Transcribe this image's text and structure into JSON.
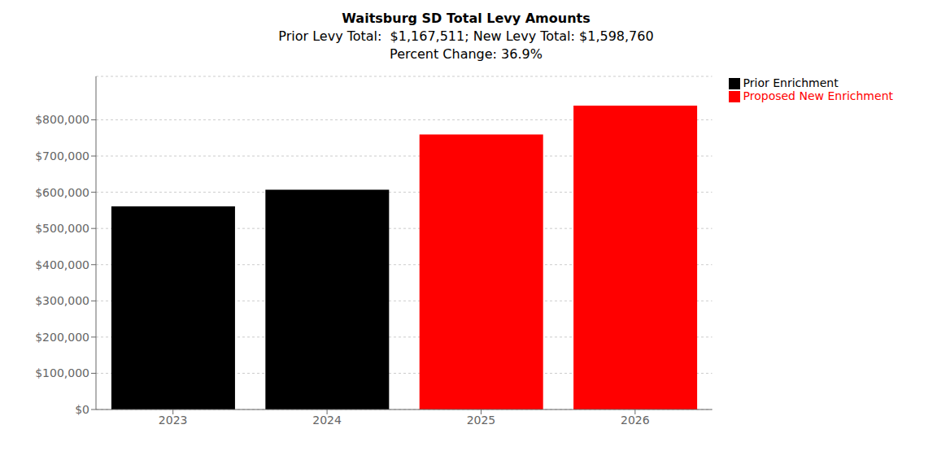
{
  "chart_data": {
    "type": "bar",
    "title": "Waitsburg SD Total Levy Amounts\nPrior Levy Total:  $1,167,511; New Levy Total: $1,598,760\nPercent Change: 36.9%",
    "categories": [
      "2023",
      "2024",
      "2025",
      "2026"
    ],
    "series": [
      {
        "name": "Prior Enrichment",
        "color": "#000000",
        "values": [
          560756,
          606755,
          null,
          null
        ]
      },
      {
        "name": "Proposed New Enrichment",
        "color": "#ff0000",
        "values": [
          null,
          null,
          759380,
          839380
        ]
      }
    ],
    "stacked": true,
    "ylim": [
      0,
      920000
    ],
    "yticks": [
      {
        "value": 0,
        "label": "$0"
      },
      {
        "value": 100000,
        "label": "$100,000"
      },
      {
        "value": 200000,
        "label": "$200,000"
      },
      {
        "value": 300000,
        "label": "$300,000"
      },
      {
        "value": 400000,
        "label": "$400,000"
      },
      {
        "value": 500000,
        "label": "$500,000"
      },
      {
        "value": 600000,
        "label": "$600,000"
      },
      {
        "value": 700000,
        "label": "$700,000"
      },
      {
        "value": 800000,
        "label": "$800,000"
      }
    ],
    "grid": true,
    "legend": "upper right"
  }
}
